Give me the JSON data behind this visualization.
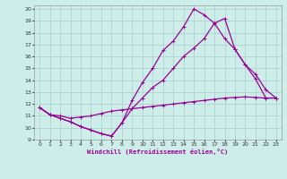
{
  "xlabel": "Windchill (Refroidissement éolien,°C)",
  "bg_color": "#cdeee8",
  "line_color": "#990099",
  "grid_color": "#aacccc",
  "xlim": [
    -0.5,
    23.5
  ],
  "ylim": [
    9,
    20.3
  ],
  "xticks": [
    0,
    1,
    2,
    3,
    4,
    5,
    6,
    7,
    8,
    9,
    10,
    11,
    12,
    13,
    14,
    15,
    16,
    17,
    18,
    19,
    20,
    21,
    22,
    23
  ],
  "yticks": [
    9,
    10,
    11,
    12,
    13,
    14,
    15,
    16,
    17,
    18,
    19,
    20
  ],
  "line1_x": [
    0,
    1,
    2,
    3,
    4,
    5,
    6,
    7,
    8,
    9,
    10,
    11,
    12,
    13,
    14,
    15,
    16,
    17,
    18,
    19,
    20,
    21,
    22,
    23
  ],
  "line1_y": [
    11.7,
    11.1,
    10.8,
    10.5,
    10.1,
    9.8,
    9.5,
    9.3,
    10.4,
    12.3,
    13.8,
    15.0,
    16.5,
    17.3,
    18.5,
    20.0,
    19.5,
    18.8,
    17.5,
    16.6,
    15.3,
    14.1,
    12.5,
    12.5
  ],
  "line2_x": [
    0,
    1,
    2,
    3,
    4,
    5,
    6,
    7,
    8,
    9,
    10,
    11,
    12,
    13,
    14,
    15,
    16,
    17,
    18,
    19,
    20,
    21,
    22,
    23
  ],
  "line2_y": [
    11.7,
    11.1,
    10.8,
    10.5,
    10.1,
    9.8,
    9.5,
    9.3,
    10.4,
    11.6,
    12.5,
    13.4,
    14.0,
    15.0,
    16.0,
    16.7,
    17.5,
    18.8,
    19.2,
    16.6,
    15.3,
    14.5,
    13.2,
    12.5
  ],
  "line3_x": [
    0,
    1,
    2,
    3,
    4,
    5,
    6,
    7,
    8,
    9,
    10,
    11,
    12,
    13,
    14,
    15,
    16,
    17,
    18,
    19,
    20,
    21,
    22,
    23
  ],
  "line3_y": [
    11.7,
    11.1,
    11.0,
    10.8,
    10.9,
    11.0,
    11.2,
    11.4,
    11.5,
    11.6,
    11.7,
    11.8,
    11.9,
    12.0,
    12.1,
    12.2,
    12.3,
    12.4,
    12.5,
    12.55,
    12.6,
    12.55,
    12.5,
    12.5
  ],
  "marker": "+",
  "markersize": 3,
  "linewidth": 0.9
}
